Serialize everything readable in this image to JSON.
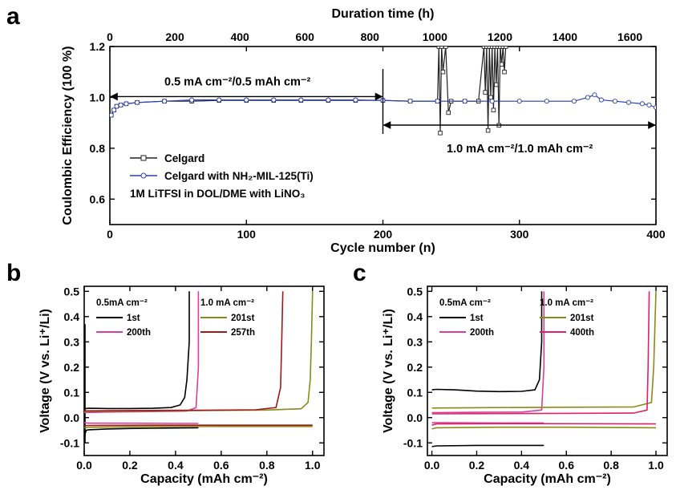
{
  "chart_data": [
    {
      "panel": "a",
      "type": "scatter",
      "xlabel": "Cycle number (n)",
      "ylabel": "Coulombic Efficiency (100 %)",
      "x2label": "Duration time (h)",
      "xlim": [
        0,
        400
      ],
      "ylim": [
        0.5,
        1.2
      ],
      "x2lim": [
        0,
        1680
      ],
      "xticks": [
        0,
        100,
        200,
        300,
        400
      ],
      "yticks": [
        0.6,
        0.8,
        1.0,
        1.2
      ],
      "x2ticks": [
        0,
        200,
        400,
        600,
        800,
        1000,
        1200,
        1400,
        1600
      ],
      "legend_position": "bottom-left",
      "series": [
        {
          "name": "Celgard",
          "color": "#222222",
          "x": [
            1,
            3,
            5,
            8,
            12,
            20,
            40,
            60,
            80,
            100,
            120,
            140,
            160,
            180,
            200,
            220,
            240,
            241,
            242,
            243,
            244,
            246,
            248,
            250,
            260,
            270,
            274,
            275,
            276,
            277,
            278,
            279,
            280,
            281,
            282,
            283,
            284,
            285,
            286,
            287,
            288,
            289,
            290
          ],
          "y": [
            0.93,
            0.95,
            0.965,
            0.97,
            0.975,
            0.98,
            0.985,
            0.985,
            0.988,
            0.988,
            0.988,
            0.988,
            0.988,
            0.988,
            0.988,
            0.985,
            0.985,
            1.2,
            0.86,
            1.2,
            1.1,
            1.2,
            0.94,
            0.985,
            0.985,
            0.985,
            1.2,
            1.02,
            1.2,
            0.87,
            1.2,
            1.0,
            1.2,
            0.95,
            1.2,
            1.05,
            1.2,
            0.89,
            1.2,
            1.13,
            1.2,
            1.1,
            1.2
          ]
        },
        {
          "name": "Celgard with NH₂-MIL-125(Ti)",
          "color": "#2b3fb5",
          "x": [
            1,
            3,
            5,
            8,
            12,
            20,
            40,
            60,
            80,
            100,
            120,
            140,
            160,
            180,
            200,
            220,
            240,
            260,
            280,
            300,
            320,
            340,
            350,
            355,
            360,
            370,
            380,
            390,
            395,
            400
          ],
          "y": [
            0.93,
            0.95,
            0.965,
            0.97,
            0.975,
            0.98,
            0.985,
            0.99,
            0.99,
            0.99,
            0.99,
            0.99,
            0.99,
            0.99,
            0.988,
            0.985,
            0.985,
            0.985,
            0.985,
            0.985,
            0.985,
            0.985,
            1.0,
            1.01,
            0.99,
            0.985,
            0.98,
            0.975,
            0.97,
            0.96
          ]
        }
      ],
      "annotations": [
        {
          "text": "0.5 mA cm⁻²/0.5 mAh cm⁻²",
          "x_start": 0,
          "x_end": 200,
          "y": 1.145
        },
        {
          "text": "1.0 mA cm⁻²/1.0 mAh cm⁻²",
          "x_start": 200,
          "x_end": 400,
          "y": 0.915
        }
      ],
      "note": "1M LiTFSI in DOL/DME with LiNO₃"
    },
    {
      "panel": "b",
      "type": "line",
      "xlabel": "Capacity (mAh cm⁻²)",
      "ylabel": "Voltage (V vs. Li⁺/Li)",
      "xlim": [
        0,
        1.05
      ],
      "ylim": [
        -0.15,
        0.52
      ],
      "xticks": [
        0.0,
        0.2,
        0.4,
        0.6,
        0.8,
        1.0
      ],
      "yticks": [
        -0.1,
        0.0,
        0.1,
        0.2,
        0.3,
        0.4,
        0.5
      ],
      "legend_groups": [
        {
          "header": "0.5mA cm⁻²",
          "entries": [
            "1st",
            "200th"
          ]
        },
        {
          "header": "1.0 mA cm⁻²",
          "entries": [
            "201st",
            "257th"
          ]
        }
      ],
      "series": [
        {
          "name": "1st",
          "color": "#000000",
          "charge_x": [
            0.0,
            0.02,
            0.1,
            0.2,
            0.3,
            0.38,
            0.42,
            0.44,
            0.45,
            0.46,
            0.46
          ],
          "charge_y": [
            0.035,
            0.037,
            0.036,
            0.036,
            0.037,
            0.04,
            0.05,
            0.08,
            0.15,
            0.3,
            0.5
          ],
          "discharge_x": [
            0.0,
            0.005,
            0.01,
            0.02,
            0.1,
            0.2,
            0.3,
            0.4,
            0.5
          ],
          "discharge_y": [
            -0.09,
            -0.06,
            -0.05,
            -0.048,
            -0.045,
            -0.043,
            -0.042,
            -0.041,
            -0.04
          ],
          "spike_x": 0.0,
          "spike_y": [
            -0.1,
            0.37
          ]
        },
        {
          "name": "200th",
          "color": "#d6409a",
          "charge_x": [
            0.0,
            0.1,
            0.3,
            0.45,
            0.49,
            0.5,
            0.5
          ],
          "charge_y": [
            0.02,
            0.022,
            0.024,
            0.026,
            0.04,
            0.2,
            0.5
          ],
          "discharge_x": [
            0.0,
            0.02,
            0.2,
            0.4,
            0.5
          ],
          "discharge_y": [
            -0.02,
            -0.022,
            -0.022,
            -0.023,
            -0.023
          ]
        },
        {
          "name": "201st",
          "color": "#8a8a1a",
          "charge_x": [
            0.0,
            0.2,
            0.5,
            0.8,
            0.95,
            0.98,
            0.99,
            0.995,
            1.0
          ],
          "charge_y": [
            0.025,
            0.026,
            0.028,
            0.03,
            0.035,
            0.06,
            0.15,
            0.3,
            0.5
          ],
          "discharge_x": [
            0.0,
            0.02,
            0.3,
            0.6,
            1.0
          ],
          "discharge_y": [
            -0.04,
            -0.038,
            -0.036,
            -0.035,
            -0.035
          ]
        },
        {
          "name": "257th",
          "color": "#a01818",
          "charge_x": [
            0.0,
            0.2,
            0.5,
            0.75,
            0.84,
            0.86,
            0.865,
            0.87
          ],
          "charge_y": [
            0.027,
            0.028,
            0.029,
            0.031,
            0.04,
            0.12,
            0.3,
            0.5
          ],
          "discharge_x": [
            0.0,
            0.02,
            0.3,
            0.6,
            1.0
          ],
          "discharge_y": [
            -0.032,
            -0.031,
            -0.03,
            -0.03,
            -0.03
          ]
        }
      ]
    },
    {
      "panel": "c",
      "type": "line",
      "xlabel": "Capacity (mAh cm⁻²)",
      "ylabel": "Voltage (V vs. Li⁺/Li)",
      "xlim": [
        -0.02,
        1.05
      ],
      "ylim": [
        -0.15,
        0.52
      ],
      "xticks": [
        0.0,
        0.2,
        0.4,
        0.6,
        0.8,
        1.0
      ],
      "yticks": [
        -0.1,
        0.0,
        0.1,
        0.2,
        0.3,
        0.4,
        0.5
      ],
      "legend_groups": [
        {
          "header": "0.5mA cm⁻²",
          "entries": [
            "1st",
            "200th"
          ]
        },
        {
          "header": "1.0 mA cm⁻²",
          "entries": [
            "201st",
            "400th"
          ]
        }
      ],
      "series": [
        {
          "name": "1st",
          "color": "#000000",
          "charge_x": [
            0.0,
            0.02,
            0.1,
            0.2,
            0.3,
            0.4,
            0.46,
            0.48,
            0.49,
            0.49
          ],
          "charge_y": [
            0.11,
            0.112,
            0.11,
            0.105,
            0.103,
            0.104,
            0.11,
            0.15,
            0.3,
            0.5
          ],
          "discharge_x": [
            0.0,
            0.02,
            0.2,
            0.4,
            0.5
          ],
          "discharge_y": [
            -0.115,
            -0.112,
            -0.11,
            -0.11,
            -0.11
          ]
        },
        {
          "name": "200th",
          "color": "#d6409a",
          "charge_x": [
            0.0,
            0.2,
            0.4,
            0.49,
            0.5,
            0.5
          ],
          "charge_y": [
            0.02,
            0.021,
            0.022,
            0.03,
            0.2,
            0.5
          ],
          "discharge_x": [
            0.0,
            0.02,
            0.3,
            0.5
          ],
          "discharge_y": [
            -0.02,
            -0.02,
            -0.021,
            -0.021
          ]
        },
        {
          "name": "201st",
          "color": "#8a8a1a",
          "charge_x": [
            0.0,
            0.3,
            0.6,
            0.9,
            0.98,
            0.99,
            1.0
          ],
          "charge_y": [
            0.038,
            0.04,
            0.041,
            0.042,
            0.06,
            0.2,
            0.5
          ],
          "discharge_x": [
            0.0,
            0.02,
            0.3,
            0.6,
            1.0
          ],
          "discharge_y": [
            -0.045,
            -0.04,
            -0.038,
            -0.038,
            -0.04
          ]
        },
        {
          "name": "400th",
          "color": "#e0206a",
          "charge_x": [
            0.0,
            0.3,
            0.6,
            0.9,
            0.96,
            0.965,
            0.97
          ],
          "charge_y": [
            0.015,
            0.016,
            0.017,
            0.018,
            0.03,
            0.2,
            0.5
          ],
          "discharge_x": [
            0.0,
            0.02,
            0.3,
            0.6,
            1.0
          ],
          "discharge_y": [
            -0.03,
            -0.025,
            -0.024,
            -0.024,
            -0.025
          ]
        }
      ]
    }
  ]
}
